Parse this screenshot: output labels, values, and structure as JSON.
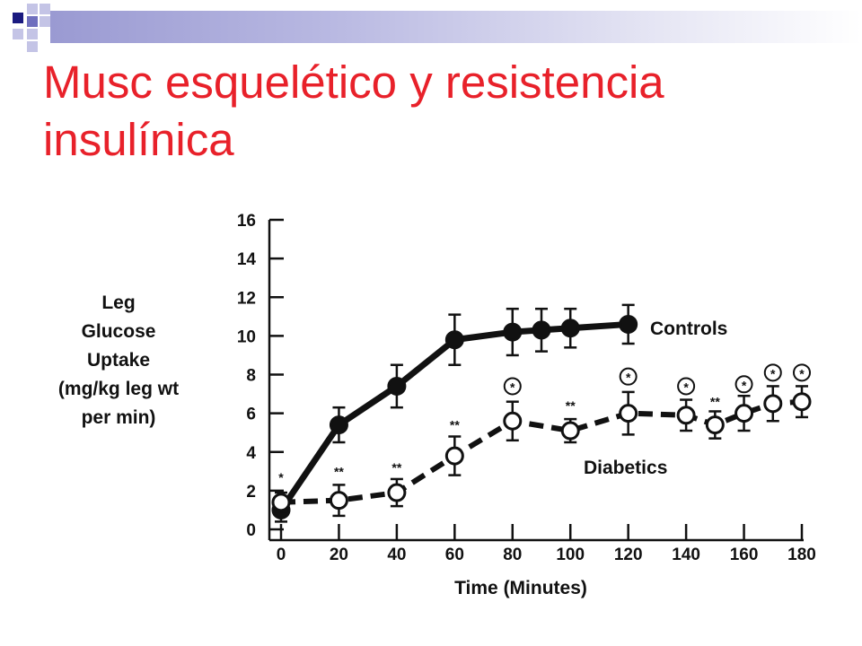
{
  "slide": {
    "title": "Musc esquelético y resistencia insulínica"
  },
  "chart_data": {
    "type": "line",
    "xlabel": "Time (Minutes)",
    "ylabel_lines": [
      "Leg",
      "Glucose",
      "Uptake",
      "(mg/kg leg wt",
      "per min)"
    ],
    "xlim": [
      0,
      180
    ],
    "ylim": [
      0,
      16
    ],
    "xticks": [
      0,
      20,
      40,
      60,
      80,
      100,
      120,
      140,
      160,
      180
    ],
    "yticks": [
      0,
      2,
      4,
      6,
      8,
      10,
      12,
      14,
      16
    ],
    "series": [
      {
        "name": "Controls",
        "style": "solid",
        "marker": "filled-circle",
        "x": [
          0,
          20,
          40,
          60,
          80,
          90,
          100,
          120
        ],
        "y": [
          1.0,
          5.4,
          7.4,
          9.8,
          10.2,
          10.3,
          10.4,
          10.6
        ],
        "err": [
          0.6,
          0.9,
          1.1,
          1.3,
          1.2,
          1.1,
          1.0,
          1.0
        ]
      },
      {
        "name": "Diabetics",
        "style": "dashed",
        "marker": "open-circle",
        "x": [
          0,
          20,
          40,
          60,
          80,
          100,
          120,
          140,
          150,
          160,
          170,
          180
        ],
        "y": [
          1.4,
          1.5,
          1.9,
          3.8,
          5.6,
          5.1,
          6.0,
          5.9,
          5.4,
          6.0,
          6.5,
          6.6
        ],
        "err": [
          0.5,
          0.8,
          0.7,
          1.0,
          1.0,
          0.6,
          1.1,
          0.8,
          0.7,
          0.9,
          0.9,
          0.8
        ]
      }
    ],
    "annotations": [
      {
        "x": 0,
        "y": 2.7,
        "text": "*",
        "circled": false
      },
      {
        "x": 20,
        "y": 3.0,
        "text": "**",
        "circled": false
      },
      {
        "x": 40,
        "y": 3.2,
        "text": "**",
        "circled": false
      },
      {
        "x": 60,
        "y": 5.4,
        "text": "**",
        "circled": false
      },
      {
        "x": 80,
        "y": 7.4,
        "text": "*",
        "circled": true
      },
      {
        "x": 100,
        "y": 6.4,
        "text": "**",
        "circled": false
      },
      {
        "x": 120,
        "y": 7.9,
        "text": "*",
        "circled": true
      },
      {
        "x": 140,
        "y": 7.4,
        "text": "*",
        "circled": true
      },
      {
        "x": 150,
        "y": 6.6,
        "text": "**",
        "circled": false
      },
      {
        "x": 160,
        "y": 7.5,
        "text": "*",
        "circled": true
      },
      {
        "x": 170,
        "y": 8.1,
        "text": "*",
        "circled": true
      },
      {
        "x": 180,
        "y": 8.1,
        "text": "*",
        "circled": true
      }
    ],
    "colors": {
      "line": "#111111",
      "title": "#e8212a"
    }
  }
}
